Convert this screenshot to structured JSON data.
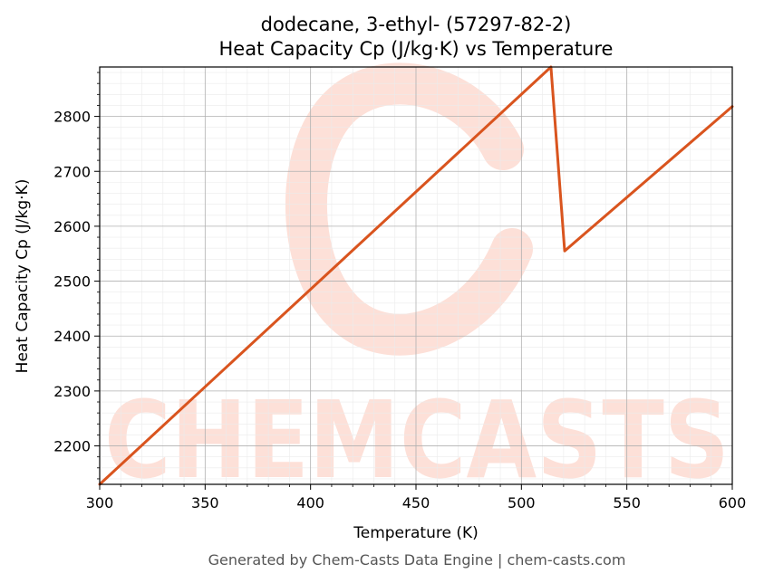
{
  "chart_data": {
    "type": "line",
    "title": "dodecane, 3-ethyl- (57297-82-2)",
    "subtitle": "Heat Capacity Cp (J/kg·K) vs Temperature",
    "xlabel": "Temperature (K)",
    "ylabel": "Heat Capacity Cp (J/kg·K)",
    "xlim": [
      300,
      600
    ],
    "ylim": [
      2130,
      2890
    ],
    "xticks": [
      300,
      350,
      400,
      450,
      500,
      550,
      600
    ],
    "yticks": [
      2200,
      2300,
      2400,
      2500,
      2600,
      2700,
      2800
    ],
    "grid": true,
    "series": [
      {
        "color": "#d9541e",
        "x": [
          300,
          514,
          520.5,
          600
        ],
        "y": [
          2130,
          2890,
          2555,
          2818
        ]
      }
    ]
  },
  "watermark": {
    "text": "CHEMCASTS",
    "color": "#fde0d8"
  },
  "footer": "Generated by Chem-Casts Data Engine | chem-casts.com"
}
